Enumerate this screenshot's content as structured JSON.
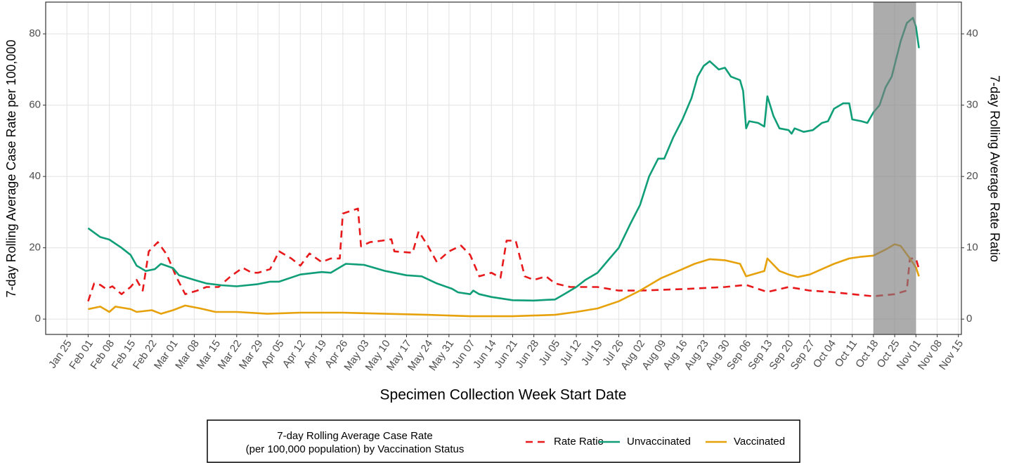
{
  "chart_data": {
    "type": "line",
    "x_label": "Specimen Collection Week Start Date",
    "y_label": "7-day Rolling Average Case Rate per 100,000",
    "y2_label": "7-day Rolling Average Rate Ratio",
    "xlim": [
      "Jan 18",
      "Nov 16"
    ],
    "xticks": [
      "Jan 25",
      "Feb 01",
      "Feb 08",
      "Feb 15",
      "Feb 22",
      "Mar 01",
      "Mar 08",
      "Mar 15",
      "Mar 22",
      "Mar 29",
      "Apr 05",
      "Apr 12",
      "Apr 19",
      "Apr 26",
      "May 03",
      "May 10",
      "May 17",
      "May 24",
      "May 31",
      "Jun 07",
      "Jun 14",
      "Jun 21",
      "Jun 28",
      "Jul 05",
      "Jul 12",
      "Jul 19",
      "Jul 26",
      "Aug 02",
      "Aug 09",
      "Aug 16",
      "Aug 23",
      "Aug 30",
      "Sep 06",
      "Sep 13",
      "Sep 20",
      "Sep 27",
      "Oct 04",
      "Oct 11",
      "Oct 18",
      "Oct 25",
      "Nov 01",
      "Nov 08",
      "Nov 15"
    ],
    "ylim": [
      -4.3,
      88.9
    ],
    "yticks": [
      0,
      20,
      40,
      60,
      80
    ],
    "y2lim": [
      -2.15,
      44.45
    ],
    "y2ticks": [
      0,
      10,
      20,
      30,
      40
    ],
    "grid": true,
    "shaded_region": {
      "x": [
        "Oct 18",
        "Nov 01"
      ],
      "color": "#808080"
    },
    "legend_title": [
      "7-day Rolling Average Case Rate",
      "(per 100,000 population) by Vaccination Status"
    ],
    "legend_position": "bottom",
    "series": [
      {
        "name": "Rate Ratio",
        "color": "#e8191b",
        "dashed": true,
        "axis": "y2",
        "x": [
          "Feb 01",
          "Feb 03",
          "Feb 05",
          "Feb 07",
          "Feb 09",
          "Feb 12",
          "Feb 15",
          "Feb 17",
          "Feb 19",
          "Feb 21",
          "Feb 24",
          "Feb 27",
          "Mar 02",
          "Mar 05",
          "Mar 09",
          "Mar 12",
          "Mar 16",
          "Mar 20",
          "Mar 24",
          "Mar 27",
          "Mar 29",
          "Apr 02",
          "Apr 05",
          "Apr 09",
          "Apr 12",
          "Apr 15",
          "Apr 19",
          "Apr 22",
          "Apr 25",
          "Apr 26",
          "May 01",
          "May 02",
          "May 05",
          "May 09",
          "May 12",
          "May 13",
          "May 19",
          "May 21",
          "May 24",
          "May 27",
          "May 31",
          "Jun 04",
          "Jun 07",
          "Jun 10",
          "Jun 14",
          "Jun 17",
          "Jun 19",
          "Jun 22",
          "Jun 25",
          "Jun 28",
          "Jul 02",
          "Jul 05",
          "Jul 10",
          "Jul 19",
          "Jul 26",
          "Aug 02",
          "Aug 16",
          "Aug 30",
          "Sep 06",
          "Sep 13",
          "Sep 20",
          "Sep 27",
          "Oct 04",
          "Oct 11",
          "Oct 18",
          "Oct 25",
          "Oct 29",
          "Oct 30",
          "Nov 01",
          "Nov 02"
        ],
        "values": [
          2.5,
          5,
          4.8,
          4.2,
          4.6,
          3.5,
          4.5,
          5.5,
          4,
          9.5,
          10.8,
          9,
          6,
          3.5,
          4,
          4.5,
          4.5,
          6,
          7.2,
          6.5,
          6.5,
          7,
          9.5,
          8.5,
          7.5,
          9.2,
          8,
          8.5,
          8.5,
          14.8,
          15.5,
          10.2,
          10.8,
          11,
          11.2,
          9.5,
          9.3,
          12.3,
          10.3,
          8,
          9.5,
          10.3,
          9,
          6,
          6.5,
          5.8,
          11,
          11,
          6,
          5.5,
          6,
          5,
          4.5,
          4.5,
          4,
          4,
          4.2,
          4.5,
          4.8,
          3.8,
          4.5,
          4,
          3.8,
          3.5,
          3.2,
          3.5,
          4,
          8.5,
          8.5,
          7
        ]
      },
      {
        "name": "Unvaccinated",
        "color": "#0f9e77",
        "dashed": false,
        "axis": "y",
        "x": [
          "Feb 01",
          "Feb 05",
          "Feb 08",
          "Feb 12",
          "Feb 15",
          "Feb 17",
          "Feb 20",
          "Feb 23",
          "Feb 25",
          "Mar 01",
          "Mar 03",
          "Mar 08",
          "Mar 12",
          "Mar 17",
          "Mar 22",
          "Mar 29",
          "Apr 02",
          "Apr 05",
          "Apr 12",
          "Apr 19",
          "Apr 22",
          "Apr 27",
          "May 03",
          "May 10",
          "May 17",
          "May 22",
          "May 27",
          "Jun 01",
          "Jun 03",
          "Jun 07",
          "Jun 08",
          "Jun 10",
          "Jun 14",
          "Jun 21",
          "Jun 28",
          "Jul 02",
          "Jul 05",
          "Jul 08",
          "Jul 12",
          "Jul 15",
          "Jul 19",
          "Jul 23",
          "Jul 26",
          "Jul 30",
          "Aug 02",
          "Aug 05",
          "Aug 08",
          "Aug 10",
          "Aug 13",
          "Aug 16",
          "Aug 19",
          "Aug 21",
          "Aug 23",
          "Aug 25",
          "Aug 28",
          "Aug 30",
          "Sep 01",
          "Sep 04",
          "Sep 05",
          "Sep 06",
          "Sep 07",
          "Sep 10",
          "Sep 12",
          "Sep 13",
          "Sep 15",
          "Sep 17",
          "Sep 20",
          "Sep 21",
          "Sep 22",
          "Sep 25",
          "Sep 28",
          "Oct 01",
          "Oct 03",
          "Oct 05",
          "Oct 08",
          "Oct 10",
          "Oct 11",
          "Oct 14",
          "Oct 16",
          "Oct 18",
          "Oct 20",
          "Oct 22",
          "Oct 24",
          "Oct 27",
          "Oct 29",
          "Oct 31",
          "Nov 01",
          "Nov 02"
        ],
        "values": [
          25.5,
          23,
          22.3,
          20,
          18,
          15,
          13.5,
          14,
          15.5,
          14.3,
          12.3,
          11,
          10,
          9.5,
          9.2,
          9.8,
          10.5,
          10.5,
          12.5,
          13.2,
          13,
          15.5,
          15.2,
          13.5,
          12.3,
          12,
          10,
          8.5,
          7.5,
          7,
          8,
          7,
          6.2,
          5.3,
          5.2,
          5.4,
          5.5,
          7,
          9,
          11,
          13,
          17,
          20,
          27,
          32,
          40,
          45,
          45,
          51,
          56,
          62,
          68,
          71,
          72.3,
          70,
          70.5,
          68,
          67,
          64,
          53.5,
          55.5,
          55,
          54,
          62.5,
          57,
          53.5,
          53,
          52,
          53.5,
          52.5,
          53,
          55,
          55.5,
          59,
          60.5,
          60.5,
          56,
          55.5,
          55,
          58,
          60,
          65,
          68,
          78,
          83,
          84.5,
          82,
          76
        ]
      },
      {
        "name": "Vaccinated",
        "color": "#e6a10b",
        "dashed": false,
        "axis": "y",
        "x": [
          "Feb 01",
          "Feb 05",
          "Feb 08",
          "Feb 10",
          "Feb 15",
          "Feb 17",
          "Feb 22",
          "Feb 25",
          "Mar 01",
          "Mar 05",
          "Mar 10",
          "Mar 15",
          "Mar 22",
          "Apr 01",
          "Apr 12",
          "Apr 26",
          "May 10",
          "May 24",
          "Jun 07",
          "Jun 21",
          "Jul 05",
          "Jul 12",
          "Jul 19",
          "Jul 26",
          "Aug 02",
          "Aug 09",
          "Aug 16",
          "Aug 20",
          "Aug 25",
          "Aug 30",
          "Sep 04",
          "Sep 06",
          "Sep 10",
          "Sep 12",
          "Sep 13",
          "Sep 17",
          "Sep 20",
          "Sep 23",
          "Sep 27",
          "Oct 01",
          "Oct 05",
          "Oct 10",
          "Oct 14",
          "Oct 18",
          "Oct 22",
          "Oct 25",
          "Oct 27",
          "Oct 30",
          "Nov 01",
          "Nov 02"
        ],
        "values": [
          2.8,
          3.5,
          2,
          3.5,
          2.8,
          2,
          2.5,
          1.5,
          2.5,
          3.8,
          3,
          2,
          2,
          1.5,
          1.8,
          1.8,
          1.5,
          1.2,
          0.8,
          0.8,
          1.2,
          2,
          3,
          5,
          8,
          11.5,
          14,
          15.5,
          16.8,
          16.5,
          15.5,
          12,
          13,
          13.5,
          17,
          13.5,
          12.5,
          11.8,
          12.5,
          14,
          15.5,
          17,
          17.5,
          17.8,
          19.5,
          21,
          20.5,
          17,
          14.5,
          12
        ]
      }
    ]
  }
}
